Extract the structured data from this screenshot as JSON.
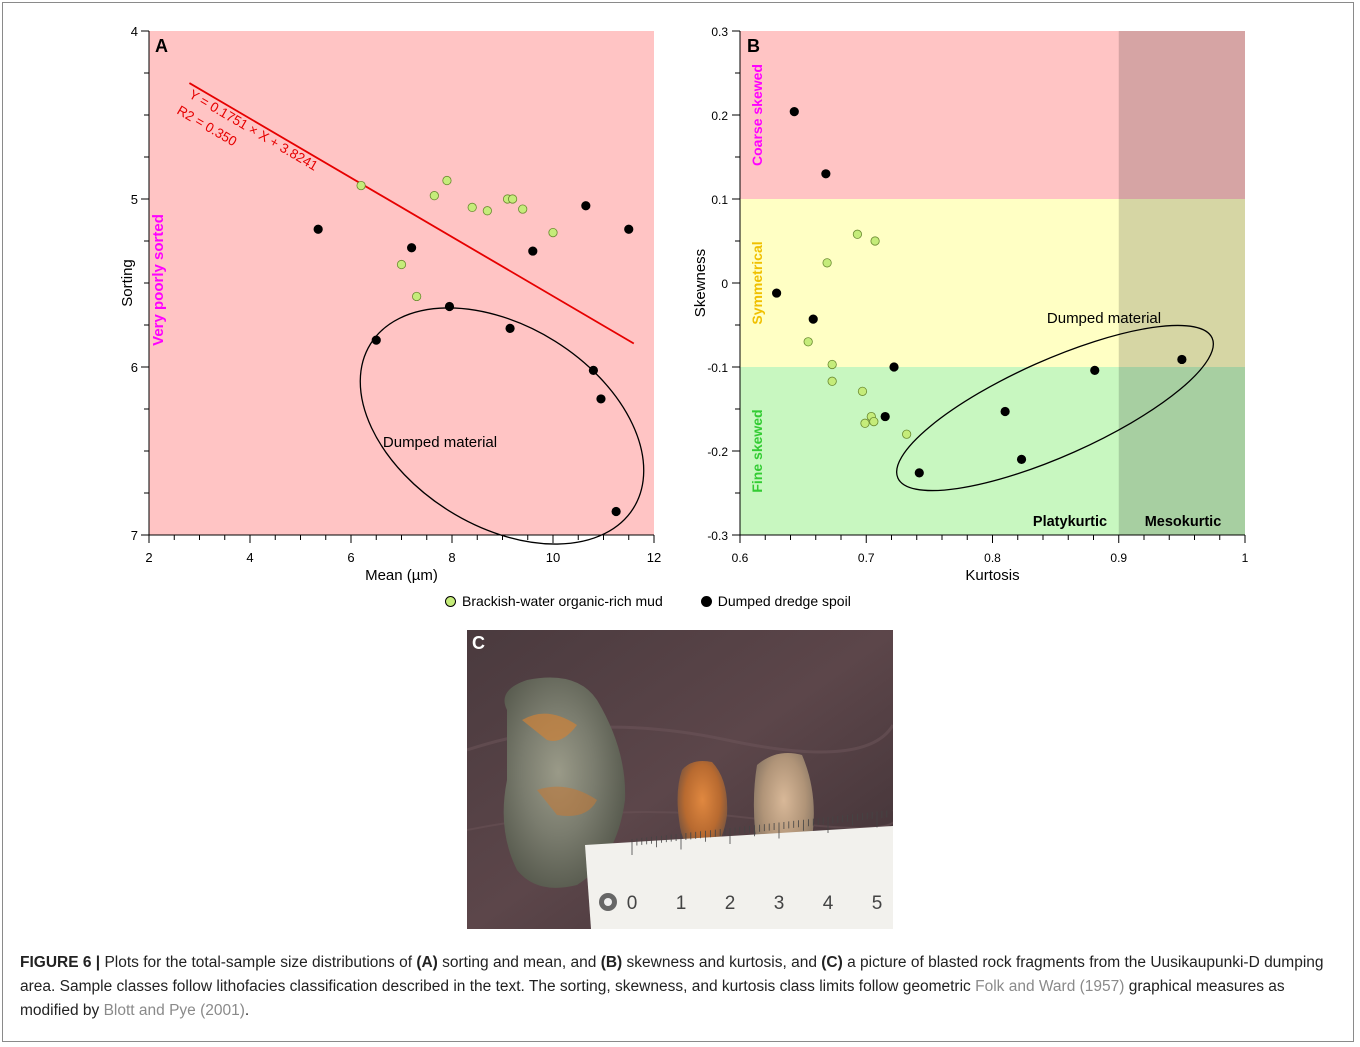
{
  "legend": {
    "items": [
      {
        "label": "Brackish-water organic-rich mud",
        "color": "#c5ec7a"
      },
      {
        "label": "Dumped dredge spoil",
        "color": "#000000"
      }
    ]
  },
  "panel_c": {
    "label": "C",
    "ruler_numbers": [
      "0",
      "1",
      "2",
      "3",
      "4",
      "5"
    ]
  },
  "caption": {
    "prefix": "FIGURE 6 |",
    "t1": " Plots for the total-sample size distributions of ",
    "a": "(A)",
    "t2": " sorting and mean, and ",
    "b": "(B)",
    "t3": " skewness and kurtosis, and ",
    "c": "(C)",
    "t4": " a picture of blasted rock fragments from the Uusikaupunki-D dumping area. Sample classes follow lithofacies classification described in the text. The sorting, skewness, and kurtosis class limits follow geometric ",
    "ref1": "Folk and Ward (1957)",
    "t5": " graphical measures as modified by ",
    "ref2": "Blott and Pye (2001)",
    "t6": "."
  },
  "chart_data": [
    {
      "type": "scatter",
      "panel": "A",
      "xlabel": "Mean (µm)",
      "ylabel": "Sorting",
      "xlim": [
        2,
        12
      ],
      "ylim": [
        4,
        7
      ],
      "y_inverted": true,
      "xticks": [
        2,
        4,
        6,
        8,
        10,
        12
      ],
      "yticks": [
        4,
        5,
        6,
        7
      ],
      "background": "#ffc4c4",
      "zone_label": {
        "text": "Very poorly sorted",
        "color": "#ff00ff"
      },
      "regression": {
        "line1": "Y = 0.1751 × X + 3.8241",
        "line2": "R2 = 0.350",
        "color": "#e60000",
        "x": [
          2.8,
          11.6
        ],
        "y": [
          4.31,
          5.86
        ]
      },
      "ellipse_label": "Dumped material",
      "series": [
        {
          "name": "Brackish-water organic-rich mud",
          "color": "#c5ec7a",
          "x": [
            6.2,
            7.0,
            7.3,
            7.65,
            7.9,
            8.4,
            8.7,
            9.1,
            9.2,
            9.4,
            10.0
          ],
          "y": [
            4.92,
            5.39,
            5.58,
            4.98,
            4.89,
            5.05,
            5.07,
            5.0,
            5.0,
            5.06,
            5.2
          ]
        },
        {
          "name": "Dumped dredge spoil",
          "color": "#000000",
          "x": [
            5.35,
            6.5,
            7.2,
            7.95,
            9.15,
            9.6,
            10.65,
            10.8,
            10.95,
            11.25,
            11.5
          ],
          "y": [
            5.18,
            5.84,
            5.29,
            5.64,
            5.77,
            5.31,
            5.04,
            6.02,
            6.19,
            6.86,
            5.18
          ]
        }
      ]
    },
    {
      "type": "scatter",
      "panel": "B",
      "xlabel": "Kurtosis",
      "ylabel": "Skewness",
      "xlim": [
        0.6,
        1.0
      ],
      "ylim": [
        -0.3,
        0.3
      ],
      "xticks": [
        0.6,
        0.7,
        0.8,
        0.9,
        1.0
      ],
      "xtick_labels": [
        "0.6",
        "0.7",
        "0.8",
        "0.9",
        "1"
      ],
      "yticks": [
        -0.3,
        -0.2,
        -0.1,
        0,
        0.1,
        0.2,
        0.3
      ],
      "ytick_labels": [
        "-0.3",
        "-0.2",
        "-0.1",
        "0",
        "0.1",
        "0.2",
        "0.3"
      ],
      "zones": [
        {
          "label": "Coarse skewed",
          "y": [
            0.1,
            0.3
          ],
          "color": "#ffc4c4",
          "text_color": "#ff00ff"
        },
        {
          "label": "Symmetrical",
          "y": [
            -0.1,
            0.1
          ],
          "color": "#ffffc4",
          "text_color": "#f0c000"
        },
        {
          "label": "Fine skewed",
          "y": [
            -0.3,
            -0.1
          ],
          "color": "#c8f7c0",
          "text_color": "#33cc33"
        }
      ],
      "kurtosis_classes": [
        {
          "label": "Platykurtic",
          "x": [
            0.6,
            0.9
          ]
        },
        {
          "label": "Mesokurtic",
          "x": [
            0.9,
            1.0
          ]
        }
      ],
      "ellipse_label": "Dumped material",
      "series": [
        {
          "name": "Brackish-water organic-rich mud",
          "color": "#c5ec7a",
          "x": [
            0.654,
            0.669,
            0.673,
            0.673,
            0.693,
            0.697,
            0.699,
            0.704,
            0.706,
            0.707,
            0.732
          ],
          "y": [
            -0.07,
            0.024,
            -0.097,
            -0.117,
            0.058,
            -0.129,
            -0.167,
            -0.159,
            -0.165,
            0.05,
            -0.18
          ]
        },
        {
          "name": "Dumped dredge spoil",
          "color": "#000000",
          "x": [
            0.643,
            0.668,
            0.629,
            0.658,
            0.722,
            0.715,
            0.742,
            0.81,
            0.823,
            0.881,
            0.95
          ],
          "y": [
            0.204,
            0.13,
            -0.012,
            -0.043,
            -0.1,
            -0.159,
            -0.226,
            -0.153,
            -0.21,
            -0.104,
            -0.091
          ]
        }
      ]
    }
  ]
}
